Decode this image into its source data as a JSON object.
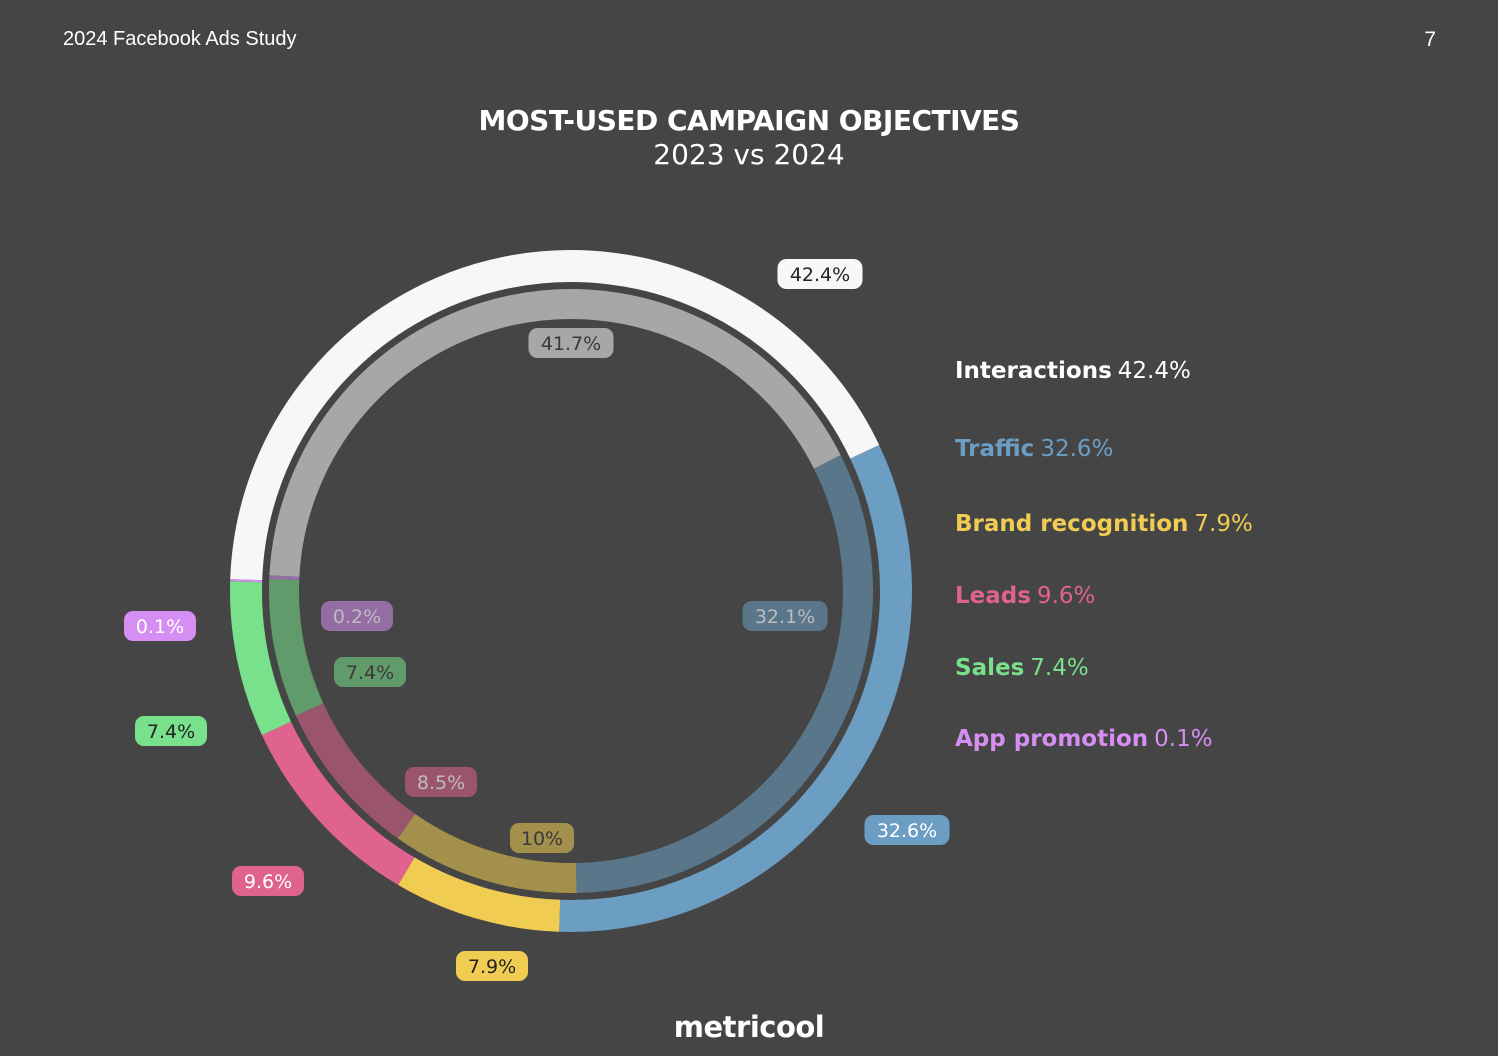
{
  "header": {
    "doc_title": "2024 Facebook Ads Study",
    "page_number": "7"
  },
  "brand": {
    "logo_text": "metricool"
  },
  "chart_data": {
    "type": "donut",
    "title": "MOST-USED CAMPAIGN OBJECTIVES",
    "subtitle": "2023 vs 2024",
    "categories": [
      "Interactions",
      "Traffic",
      "Brand recognition",
      "Leads",
      "Sales",
      "App promotion"
    ],
    "colors": {
      "Interactions": "#f7f7f7",
      "Traffic": "#6b9ec2",
      "Brand recognition": "#f0cd52",
      "Leads": "#e0638e",
      "Sales": "#79e08b",
      "App promotion": "#d68ef3"
    },
    "series": [
      {
        "name": "2023",
        "ring": "inner",
        "values": [
          41.7,
          32.1,
          10,
          8.5,
          7.4,
          0.2
        ],
        "labels": [
          "41.7%",
          "32.1%",
          "10%",
          "8.5%",
          "7.4%",
          "0.2%"
        ]
      },
      {
        "name": "2024",
        "ring": "outer",
        "values": [
          42.4,
          32.6,
          7.9,
          9.6,
          7.4,
          0.1
        ],
        "labels": [
          "42.4%",
          "32.6%",
          "7.9%",
          "9.6%",
          "7.4%",
          "0.1%"
        ]
      }
    ],
    "legend": {
      "position": "right",
      "items": [
        {
          "name": "Interactions",
          "value": "42.4%",
          "color": "#ffffff"
        },
        {
          "name": "Traffic",
          "value": "32.6%",
          "color": "#6b9ec2"
        },
        {
          "name": "Brand recognition",
          "value": "7.9%",
          "color": "#f0cd52"
        },
        {
          "name": "Leads",
          "value": "9.6%",
          "color": "#e0638e"
        },
        {
          "name": "Sales",
          "value": "7.4%",
          "color": "#79e08b"
        },
        {
          "name": "App promotion",
          "value": "0.1%",
          "color": "#d68ef3"
        }
      ]
    }
  }
}
